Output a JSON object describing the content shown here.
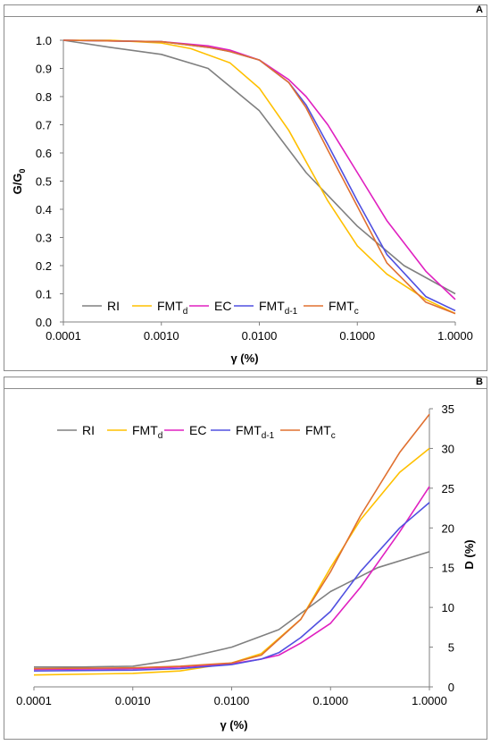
{
  "chart_data": [
    {
      "type": "line",
      "panel_label": "A",
      "xlabel": "γ (%)",
      "ylabel_main": "G/G",
      "ylabel_sub": "0",
      "x_scale": "log",
      "xlim": [
        0.0001,
        1.0
      ],
      "ylim": [
        0.0,
        1.0
      ],
      "x_ticks": [
        "0.0001",
        "0.0010",
        "0.0100",
        "0.1000",
        "1.0000"
      ],
      "y_ticks": [
        "0.0",
        "0.1",
        "0.2",
        "0.3",
        "0.4",
        "0.5",
        "0.6",
        "0.7",
        "0.8",
        "0.9",
        "1.0"
      ],
      "grid": false,
      "legend_position": "bottom-left inside plot",
      "series": [
        {
          "name": "RI",
          "name_main": "RI",
          "name_sub": "",
          "color": "#808080",
          "x": [
            0.0001,
            0.0003,
            0.001,
            0.003,
            0.01,
            0.03,
            0.1,
            0.3,
            1.0
          ],
          "y": [
            1.0,
            0.975,
            0.95,
            0.9,
            0.75,
            0.53,
            0.34,
            0.2,
            0.1
          ]
        },
        {
          "name": "FMTd",
          "name_main": "FMT",
          "name_sub": "d",
          "color": "#ffc000",
          "x": [
            0.0001,
            0.0003,
            0.001,
            0.002,
            0.005,
            0.01,
            0.02,
            0.05,
            0.1,
            0.2,
            0.5,
            1.0
          ],
          "y": [
            1.0,
            1.0,
            0.99,
            0.97,
            0.92,
            0.83,
            0.68,
            0.43,
            0.27,
            0.17,
            0.08,
            0.03
          ]
        },
        {
          "name": "EC",
          "name_main": "EC",
          "name_sub": "",
          "color": "#e020c0",
          "x": [
            0.0001,
            0.001,
            0.003,
            0.005,
            0.01,
            0.02,
            0.03,
            0.05,
            0.1,
            0.2,
            0.5,
            1.0
          ],
          "y": [
            1.0,
            0.995,
            0.98,
            0.965,
            0.93,
            0.86,
            0.8,
            0.7,
            0.53,
            0.36,
            0.18,
            0.08
          ]
        },
        {
          "name": "FMTd-1",
          "name_main": "FMT",
          "name_sub": "d-1",
          "color": "#5050e0",
          "x": [
            0.0001,
            0.001,
            0.003,
            0.005,
            0.01,
            0.02,
            0.03,
            0.05,
            0.1,
            0.2,
            0.5,
            1.0
          ],
          "y": [
            1.0,
            0.995,
            0.975,
            0.96,
            0.93,
            0.85,
            0.77,
            0.63,
            0.43,
            0.24,
            0.09,
            0.04
          ]
        },
        {
          "name": "FMTc",
          "name_main": "FMT",
          "name_sub": "c",
          "color": "#e07030",
          "x": [
            0.0001,
            0.001,
            0.003,
            0.005,
            0.01,
            0.02,
            0.03,
            0.05,
            0.1,
            0.2,
            0.5,
            1.0
          ],
          "y": [
            1.0,
            0.995,
            0.975,
            0.96,
            0.93,
            0.85,
            0.76,
            0.61,
            0.41,
            0.21,
            0.07,
            0.03
          ]
        }
      ]
    },
    {
      "type": "line",
      "panel_label": "B",
      "xlabel": "γ (%)",
      "ylabel": "D (%)",
      "x_scale": "log",
      "xlim": [
        0.0001,
        1.0
      ],
      "ylim": [
        0,
        35
      ],
      "y_axis_side": "right",
      "x_ticks": [
        "0.0001",
        "0.0010",
        "0.0100",
        "0.1000",
        "1.0000"
      ],
      "y_ticks": [
        "0",
        "5",
        "10",
        "15",
        "20",
        "25",
        "30",
        "35"
      ],
      "grid": false,
      "legend_position": "top-left inside plot",
      "series": [
        {
          "name": "RI",
          "name_main": "RI",
          "name_sub": "",
          "color": "#808080",
          "x": [
            0.0001,
            0.0003,
            0.001,
            0.003,
            0.01,
            0.03,
            0.1,
            0.3,
            1.0
          ],
          "y": [
            2.5,
            2.5,
            2.6,
            3.5,
            5.0,
            7.2,
            12.0,
            15.0,
            17.0
          ]
        },
        {
          "name": "FMTd",
          "name_main": "FMT",
          "name_sub": "d",
          "color": "#ffc000",
          "x": [
            0.0001,
            0.001,
            0.003,
            0.01,
            0.02,
            0.05,
            0.1,
            0.2,
            0.5,
            1.0
          ],
          "y": [
            1.5,
            1.7,
            2.0,
            3.0,
            4.2,
            8.5,
            15.0,
            21.0,
            27.0,
            30.0
          ]
        },
        {
          "name": "EC",
          "name_main": "EC",
          "name_sub": "",
          "color": "#e020c0",
          "x": [
            0.0001,
            0.001,
            0.003,
            0.01,
            0.02,
            0.03,
            0.05,
            0.1,
            0.2,
            0.5,
            1.0
          ],
          "y": [
            2.2,
            2.3,
            2.5,
            2.9,
            3.5,
            4.0,
            5.5,
            8.0,
            12.5,
            19.5,
            25.2
          ]
        },
        {
          "name": "FMTd-1",
          "name_main": "FMT",
          "name_sub": "d-1",
          "color": "#5050e0",
          "x": [
            0.0001,
            0.001,
            0.003,
            0.01,
            0.02,
            0.03,
            0.05,
            0.1,
            0.2,
            0.5,
            1.0
          ],
          "y": [
            2.0,
            2.1,
            2.3,
            2.8,
            3.5,
            4.3,
            6.2,
            9.5,
            14.5,
            20.0,
            23.2
          ]
        },
        {
          "name": "FMTc",
          "name_main": "FMT",
          "name_sub": "c",
          "color": "#e07030",
          "x": [
            0.0001,
            0.001,
            0.003,
            0.01,
            0.02,
            0.05,
            0.1,
            0.2,
            0.5,
            1.0
          ],
          "y": [
            2.3,
            2.4,
            2.6,
            3.0,
            4.0,
            8.5,
            14.5,
            21.5,
            29.5,
            34.3
          ]
        }
      ]
    }
  ]
}
